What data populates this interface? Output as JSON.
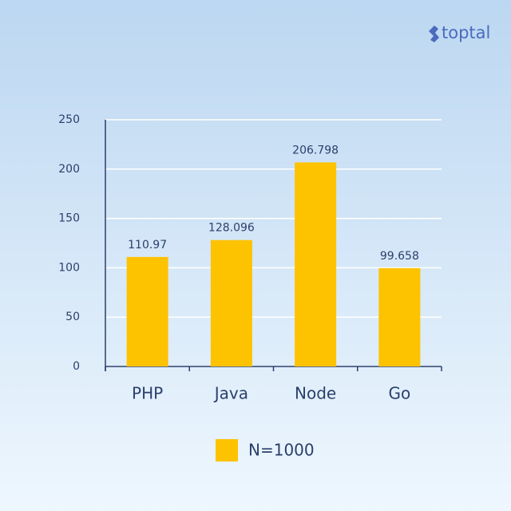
{
  "brand": "toptal",
  "chart_data": {
    "type": "bar",
    "categories": [
      "PHP",
      "Java",
      "Node",
      "Go"
    ],
    "series": [
      {
        "name": "N=1000",
        "color": "#fdc200",
        "values": [
          110.97,
          128.096,
          206.798,
          99.658
        ]
      }
    ],
    "ylim": [
      0,
      250
    ],
    "yticks": [
      0,
      50,
      100,
      150,
      200,
      250
    ],
    "grid": true
  }
}
